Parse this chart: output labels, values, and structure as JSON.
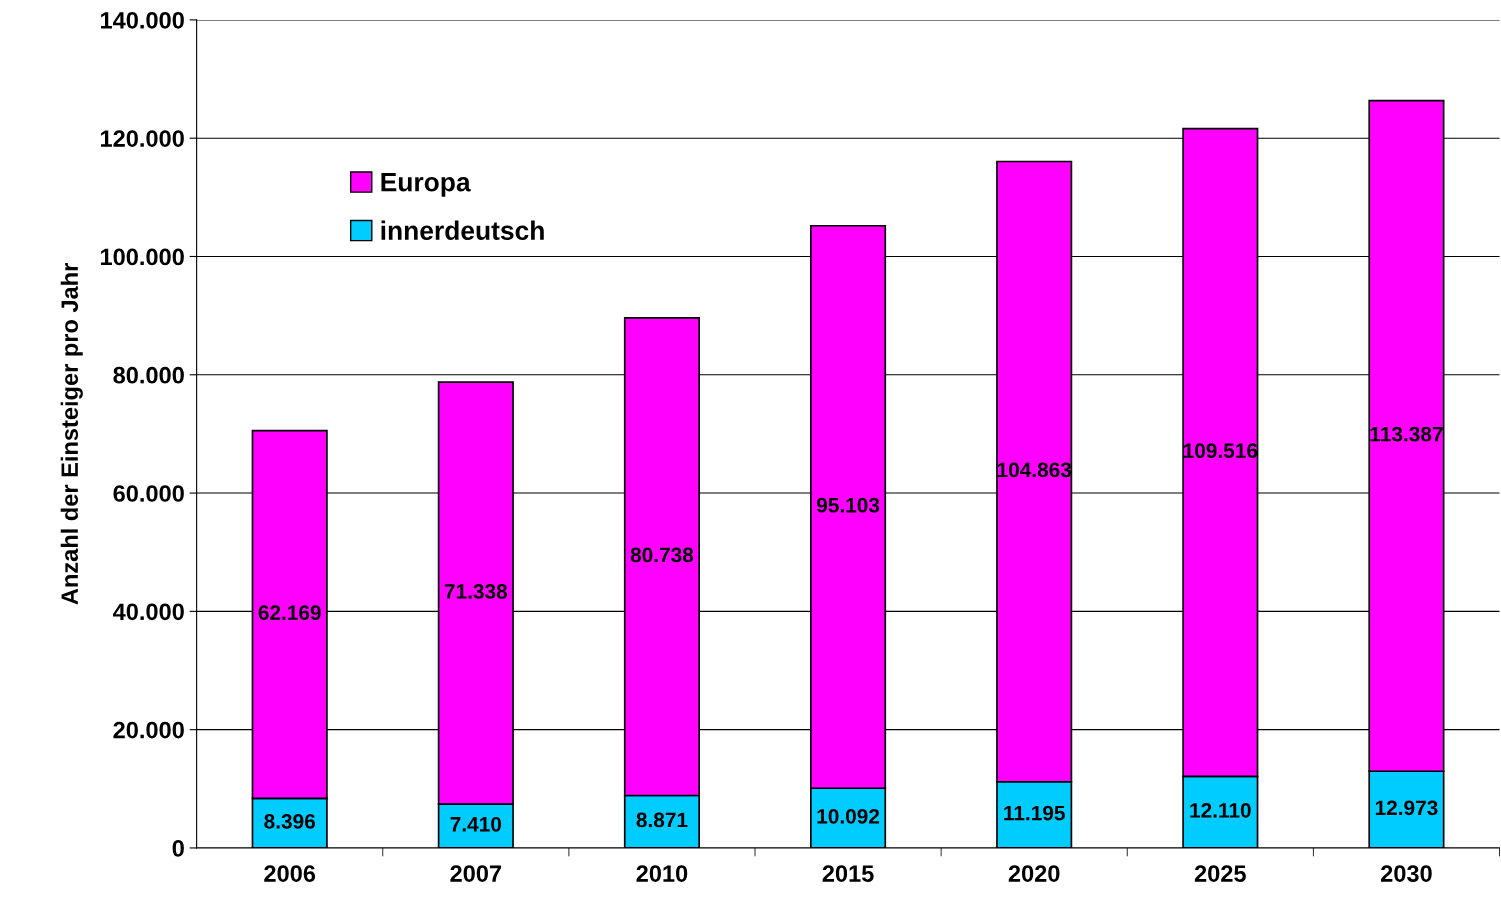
{
  "chart_data": {
    "type": "bar",
    "stacked": true,
    "ylabel": "Anzahl der Einsteiger pro Jahr",
    "categories": [
      "2006",
      "2007",
      "2010",
      "2015",
      "2020",
      "2025",
      "2030"
    ],
    "series": [
      {
        "name": "innerdeutsch",
        "color": "#00ccff",
        "values": [
          8396,
          7410,
          8871,
          10092,
          11195,
          12110,
          12973
        ],
        "value_labels": [
          "8.396",
          "7.410",
          "8.871",
          "10.092",
          "11.195",
          "12.110",
          "12.973"
        ]
      },
      {
        "name": "Europa",
        "color": "#ff00ff",
        "values": [
          62169,
          71338,
          80738,
          95103,
          104863,
          109516,
          113387
        ],
        "value_labels": [
          "62.169",
          "71.338",
          "80.738",
          "95.103",
          "104.863",
          "109.516",
          "113.387"
        ]
      }
    ],
    "ylim": [
      0,
      140000
    ],
    "yticks": [
      {
        "value": 0,
        "label": "0"
      },
      {
        "value": 20000,
        "label": "20.000"
      },
      {
        "value": 40000,
        "label": "40.000"
      },
      {
        "value": 60000,
        "label": "60.000"
      },
      {
        "value": 80000,
        "label": "80.000"
      },
      {
        "value": 100000,
        "label": "100.000"
      },
      {
        "value": 120000,
        "label": "120.000"
      },
      {
        "value": 140000,
        "label": "140.000"
      }
    ],
    "grid": "y",
    "legend": "top left"
  }
}
